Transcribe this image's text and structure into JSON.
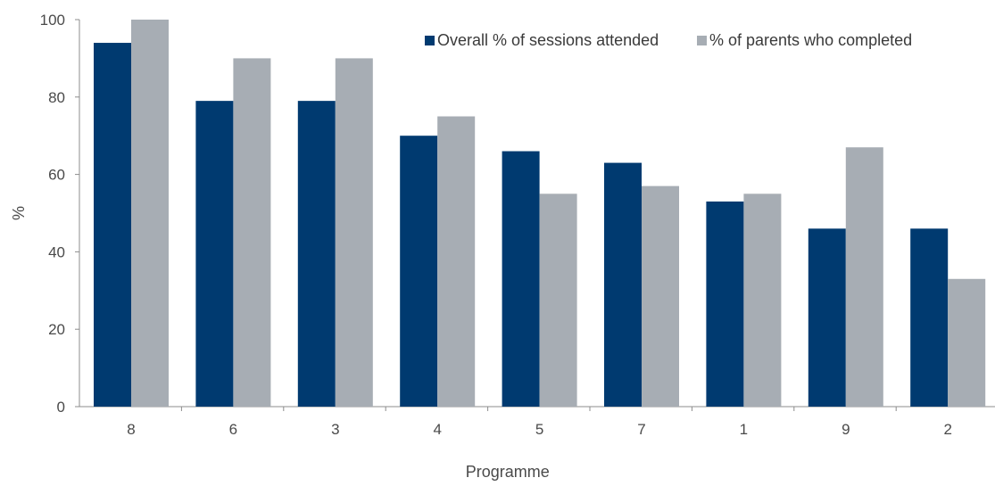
{
  "chart_data": {
    "type": "bar",
    "categories": [
      "8",
      "6",
      "3",
      "4",
      "5",
      "7",
      "1",
      "9",
      "2"
    ],
    "series": [
      {
        "name": "Overall % of sessions attended",
        "values": [
          94,
          79,
          79,
          70,
          66,
          63,
          53,
          46,
          46
        ],
        "color": "#003a70"
      },
      {
        "name": "% of parents who completed",
        "values": [
          100,
          90,
          90,
          75,
          55,
          57,
          55,
          67,
          33
        ],
        "color": "#a7adb4"
      }
    ],
    "xlabel": "Programme",
    "ylabel": "%",
    "ylim": [
      0,
      100
    ],
    "yticks": [
      0,
      20,
      40,
      60,
      80,
      100
    ],
    "grid": false,
    "legend_position": "top-right"
  }
}
